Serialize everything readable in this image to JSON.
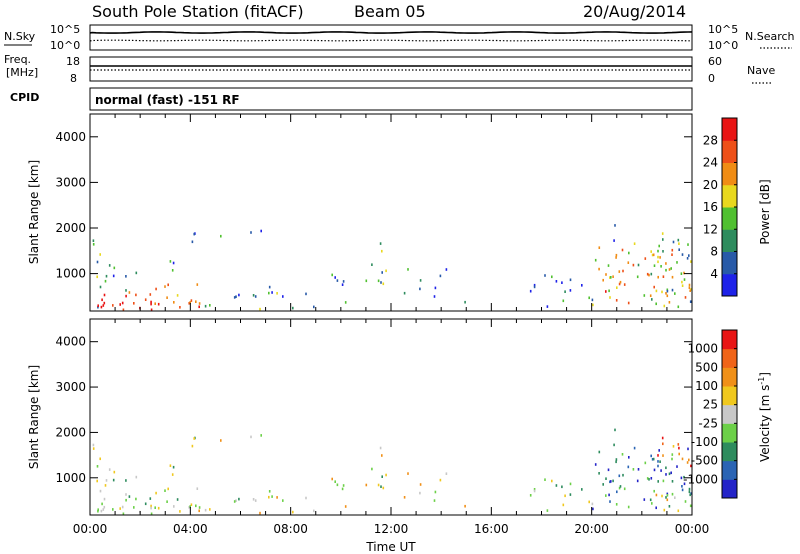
{
  "header": {
    "station": "South Pole Station (fitACF)",
    "beam": "Beam 05",
    "date": "20/Aug/2014"
  },
  "top_panels": {
    "nsky": {
      "label": "N.Sky",
      "ticks": [
        "10^5",
        "10^0"
      ]
    },
    "nsearch": {
      "label": "N.Search",
      "ticks": [
        "10^5",
        "10^0"
      ]
    },
    "freq": {
      "label_line1": "Freq.",
      "label_line2": "[MHz]",
      "ticks": [
        "18",
        "8"
      ]
    },
    "nave": {
      "label": "Nave",
      "ticks": [
        "60",
        "0"
      ]
    },
    "cpid": {
      "label": "CPID",
      "text": "normal (fast) -151 RF"
    }
  },
  "chart_data": [
    {
      "type": "heatmap",
      "name": "power",
      "ylabel": "Slant Range [km]",
      "xlabel": "",
      "y_ticks": [
        "1000",
        "2000",
        "3000",
        "4000"
      ],
      "x_ticks": [
        "00:00",
        "04:00",
        "08:00",
        "12:00",
        "16:00",
        "20:00",
        "00:00"
      ],
      "ylim": [
        180,
        4500
      ],
      "xlim_hours": [
        0,
        24
      ],
      "colorbar": {
        "label": "Power [dB]",
        "ticks": [
          "4",
          "8",
          "12",
          "16",
          "20",
          "24",
          "28"
        ],
        "colors": [
          "#1e22e8",
          "#285aa8",
          "#2e8c5e",
          "#50c030",
          "#e8d81e",
          "#f08c14",
          "#ee5018",
          "#e81414"
        ]
      }
    },
    {
      "type": "heatmap",
      "name": "velocity",
      "ylabel": "Slant Range [km]",
      "xlabel": "Time UT",
      "y_ticks": [
        "1000",
        "2000",
        "3000",
        "4000"
      ],
      "x_ticks": [
        "00:00",
        "04:00",
        "08:00",
        "12:00",
        "16:00",
        "20:00",
        "00:00"
      ],
      "ylim": [
        180,
        4500
      ],
      "xlim_hours": [
        0,
        24
      ],
      "colorbar": {
        "label": "Velocity [m s",
        "label_sup": "-1",
        "label_close": "]",
        "ticks": [
          "1000",
          "500",
          "100",
          "25",
          "-25",
          "-100",
          "-500",
          "-1000"
        ],
        "colors": [
          "#2424c8",
          "#2a64b4",
          "#2e8c5e",
          "#6cd048",
          "#c8c8c8",
          "#f0c81e",
          "#f09018",
          "#f06418",
          "#e81414"
        ]
      }
    }
  ]
}
